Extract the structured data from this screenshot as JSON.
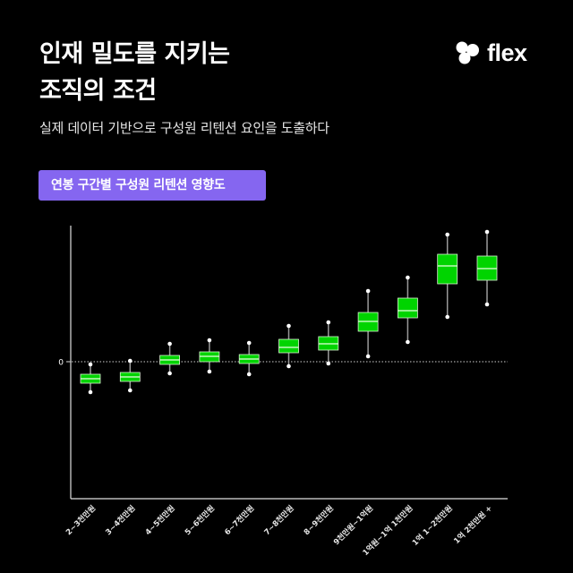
{
  "header": {
    "title_line1": "인재 밀도를 지키는",
    "title_line2": "조직의 조건",
    "subtitle": "실제 데이터 기반으로 구성원 리텐션 요인을 도출하다"
  },
  "logo": {
    "icon": "flex-logo-icon",
    "text": "flex"
  },
  "badge": {
    "label": "연봉 구간별 구성원 리텐션 영향도",
    "color": "#8566f0"
  },
  "chart_data": {
    "type": "boxplot",
    "title": "연봉 구간별 구성원 리텐션 영향도",
    "xlabel": "",
    "ylabel": "",
    "y_ticks": [
      "0"
    ],
    "reference_line": {
      "y": 0,
      "style": "dotted"
    },
    "grid": false,
    "legend": null,
    "colors": {
      "box_fill": "#00d400",
      "box_edge": "#d9f5d0",
      "whisker": "#9a9a9a",
      "cap": "#ffffff"
    },
    "units_note": "relative values, zero line = 0; scale unlabeled (approx units, 1 unit = 10px)",
    "categories": [
      "2~3천만원",
      "3~4천만원",
      "4~5천만원",
      "5~6천만원",
      "6~7천만원",
      "7~8천만원",
      "8~9천만원",
      "9천만원~1억원",
      "1억원~1억 1천만원",
      "1억 1~2천만원",
      "1억 2천만원 +"
    ],
    "series": [
      {
        "name": "2~3천만원",
        "min": -3.4,
        "q1": -2.4,
        "median": -1.9,
        "q3": -1.4,
        "max": -0.3
      },
      {
        "name": "3~4천만원",
        "min": -3.2,
        "q1": -2.2,
        "median": -1.7,
        "q3": -1.2,
        "max": 0.1
      },
      {
        "name": "4~5천만원",
        "min": -1.3,
        "q1": -0.3,
        "median": 0.2,
        "q3": 0.7,
        "max": 2.0
      },
      {
        "name": "5~6천만원",
        "min": -1.1,
        "q1": 0.0,
        "median": 0.6,
        "q3": 1.1,
        "max": 2.4
      },
      {
        "name": "6~7천만원",
        "min": -1.4,
        "q1": -0.2,
        "median": 0.3,
        "q3": 0.8,
        "max": 2.1
      },
      {
        "name": "7~8천만원",
        "min": -0.5,
        "q1": 1.0,
        "median": 1.6,
        "q3": 2.5,
        "max": 4.0
      },
      {
        "name": "8~9천만원",
        "min": -0.2,
        "q1": 1.3,
        "median": 2.0,
        "q3": 2.8,
        "max": 4.4
      },
      {
        "name": "9천만원~1억원",
        "min": 0.6,
        "q1": 3.4,
        "median": 4.5,
        "q3": 5.5,
        "max": 7.9
      },
      {
        "name": "1억원~1억 1천만원",
        "min": 2.2,
        "q1": 4.9,
        "median": 5.7,
        "q3": 7.1,
        "max": 9.4
      },
      {
        "name": "1억 1~2천만원",
        "min": 5.0,
        "q1": 8.7,
        "median": 10.7,
        "q3": 12.0,
        "max": 14.2
      },
      {
        "name": "1억 2천만원 +",
        "min": 6.4,
        "q1": 9.1,
        "median": 10.4,
        "q3": 11.8,
        "max": 14.5
      }
    ]
  }
}
